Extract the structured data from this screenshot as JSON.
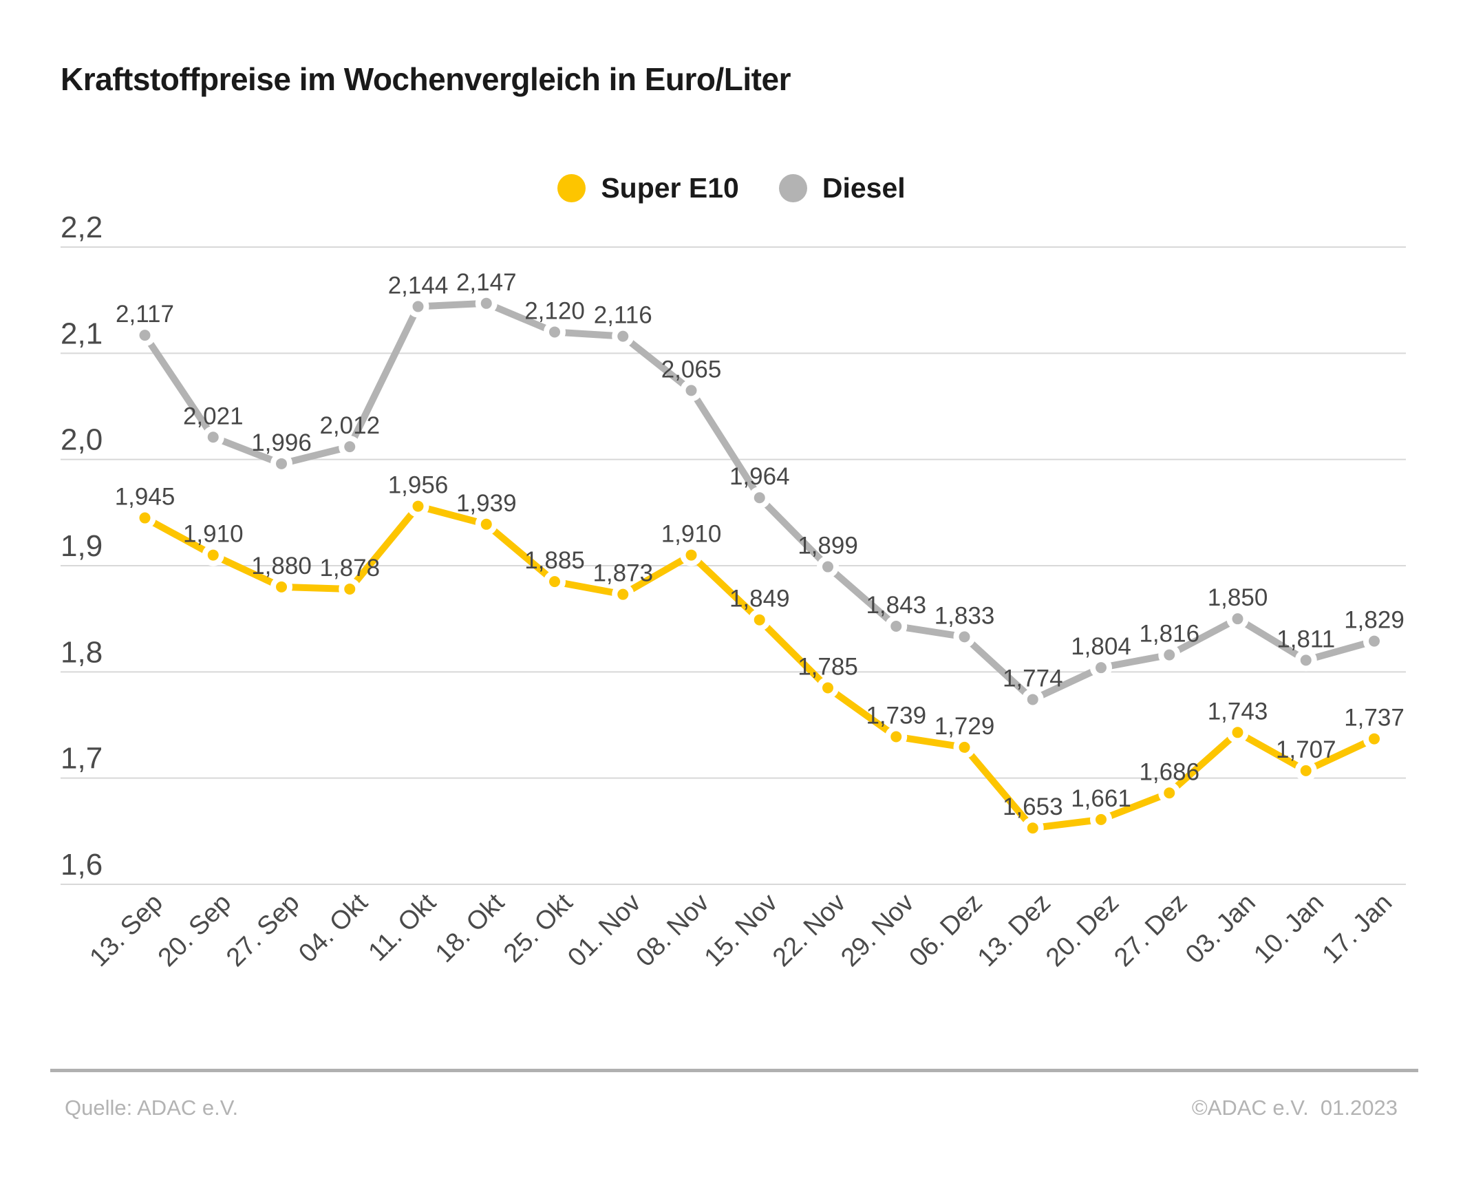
{
  "title": "Kraftstoffpreise im Wochenvergleich in Euro/Liter",
  "footer": {
    "source": "Quelle: ADAC e.V.",
    "copyright": "©ADAC e.V.  01.2023"
  },
  "chart_data": {
    "type": "line",
    "title": "Kraftstoffpreise im Wochenvergleich in Euro/Liter",
    "categories": [
      "13. Sep",
      "20. Sep",
      "27. Sep",
      "04. Okt",
      "11. Okt",
      "18. Okt",
      "25. Okt",
      "01. Nov",
      "08. Nov",
      "15. Nov",
      "22. Nov",
      "29. Nov",
      "06. Dez",
      "13. Dez",
      "20. Dez",
      "27. Dez",
      "03. Jan",
      "10. Jan",
      "17. Jan"
    ],
    "series": [
      {
        "name": "Super E10",
        "color": "#FDC500",
        "values": [
          1.945,
          1.91,
          1.88,
          1.878,
          1.956,
          1.939,
          1.885,
          1.873,
          1.91,
          1.849,
          1.785,
          1.739,
          1.729,
          1.653,
          1.661,
          1.686,
          1.743,
          1.707,
          1.737
        ]
      },
      {
        "name": "Diesel",
        "color": "#B3B3B3",
        "values": [
          2.117,
          2.021,
          1.996,
          2.012,
          2.144,
          2.147,
          2.12,
          2.116,
          2.065,
          1.964,
          1.899,
          1.843,
          1.833,
          1.774,
          1.804,
          1.816,
          1.85,
          1.811,
          1.829
        ]
      }
    ],
    "xlabel": "",
    "ylabel": "",
    "ylim": [
      1.6,
      2.2
    ],
    "y_tick_step": 0.1,
    "y_tick_labels": [
      "2,2",
      "2,1",
      "2,0",
      "1,9",
      "1,8",
      "1,7",
      "1,6"
    ],
    "decimal_separator": ",",
    "value_decimals": 3,
    "grid": true,
    "point_labels": true,
    "legend_position": "top-center",
    "colors": {
      "grid_line": "#d8d8d8",
      "axis_text": "#4a4a4a",
      "data_label_text": "#474747"
    }
  }
}
